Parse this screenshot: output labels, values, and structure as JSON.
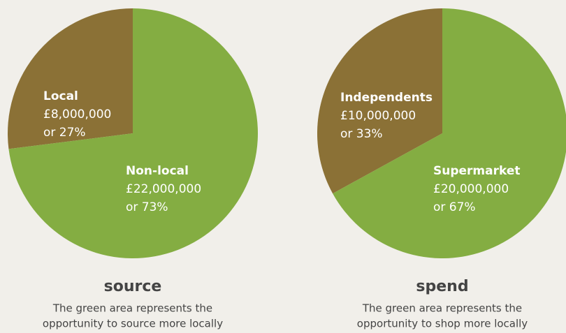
{
  "chart_data": [
    {
      "type": "pie",
      "title": "source",
      "subtitle": "The green area represents the opportunity to source more locally",
      "subtitle_lines": [
        "The green area represents the",
        "opportunity to source more locally"
      ],
      "categories": [
        "Local",
        "Non-local"
      ],
      "values": [
        27,
        73
      ],
      "value_labels": [
        "or 27%",
        "or 73%"
      ],
      "amount_labels": [
        "£8,000,000",
        "£22,000,000"
      ],
      "colors": [
        "#8b7136",
        "#84ad42"
      ]
    },
    {
      "type": "pie",
      "title": "spend",
      "subtitle": "The green area represents the opportunity to shop more locally",
      "subtitle_lines": [
        "The green area represents the",
        "opportunity to shop more locally"
      ],
      "categories": [
        "Independents",
        "Supermarket"
      ],
      "values": [
        33,
        67
      ],
      "value_labels": [
        "or 33%",
        "or 67%"
      ],
      "amount_labels": [
        "£10,000,000",
        "£20,000,000"
      ],
      "colors": [
        "#8b7136",
        "#84ad42"
      ]
    }
  ]
}
